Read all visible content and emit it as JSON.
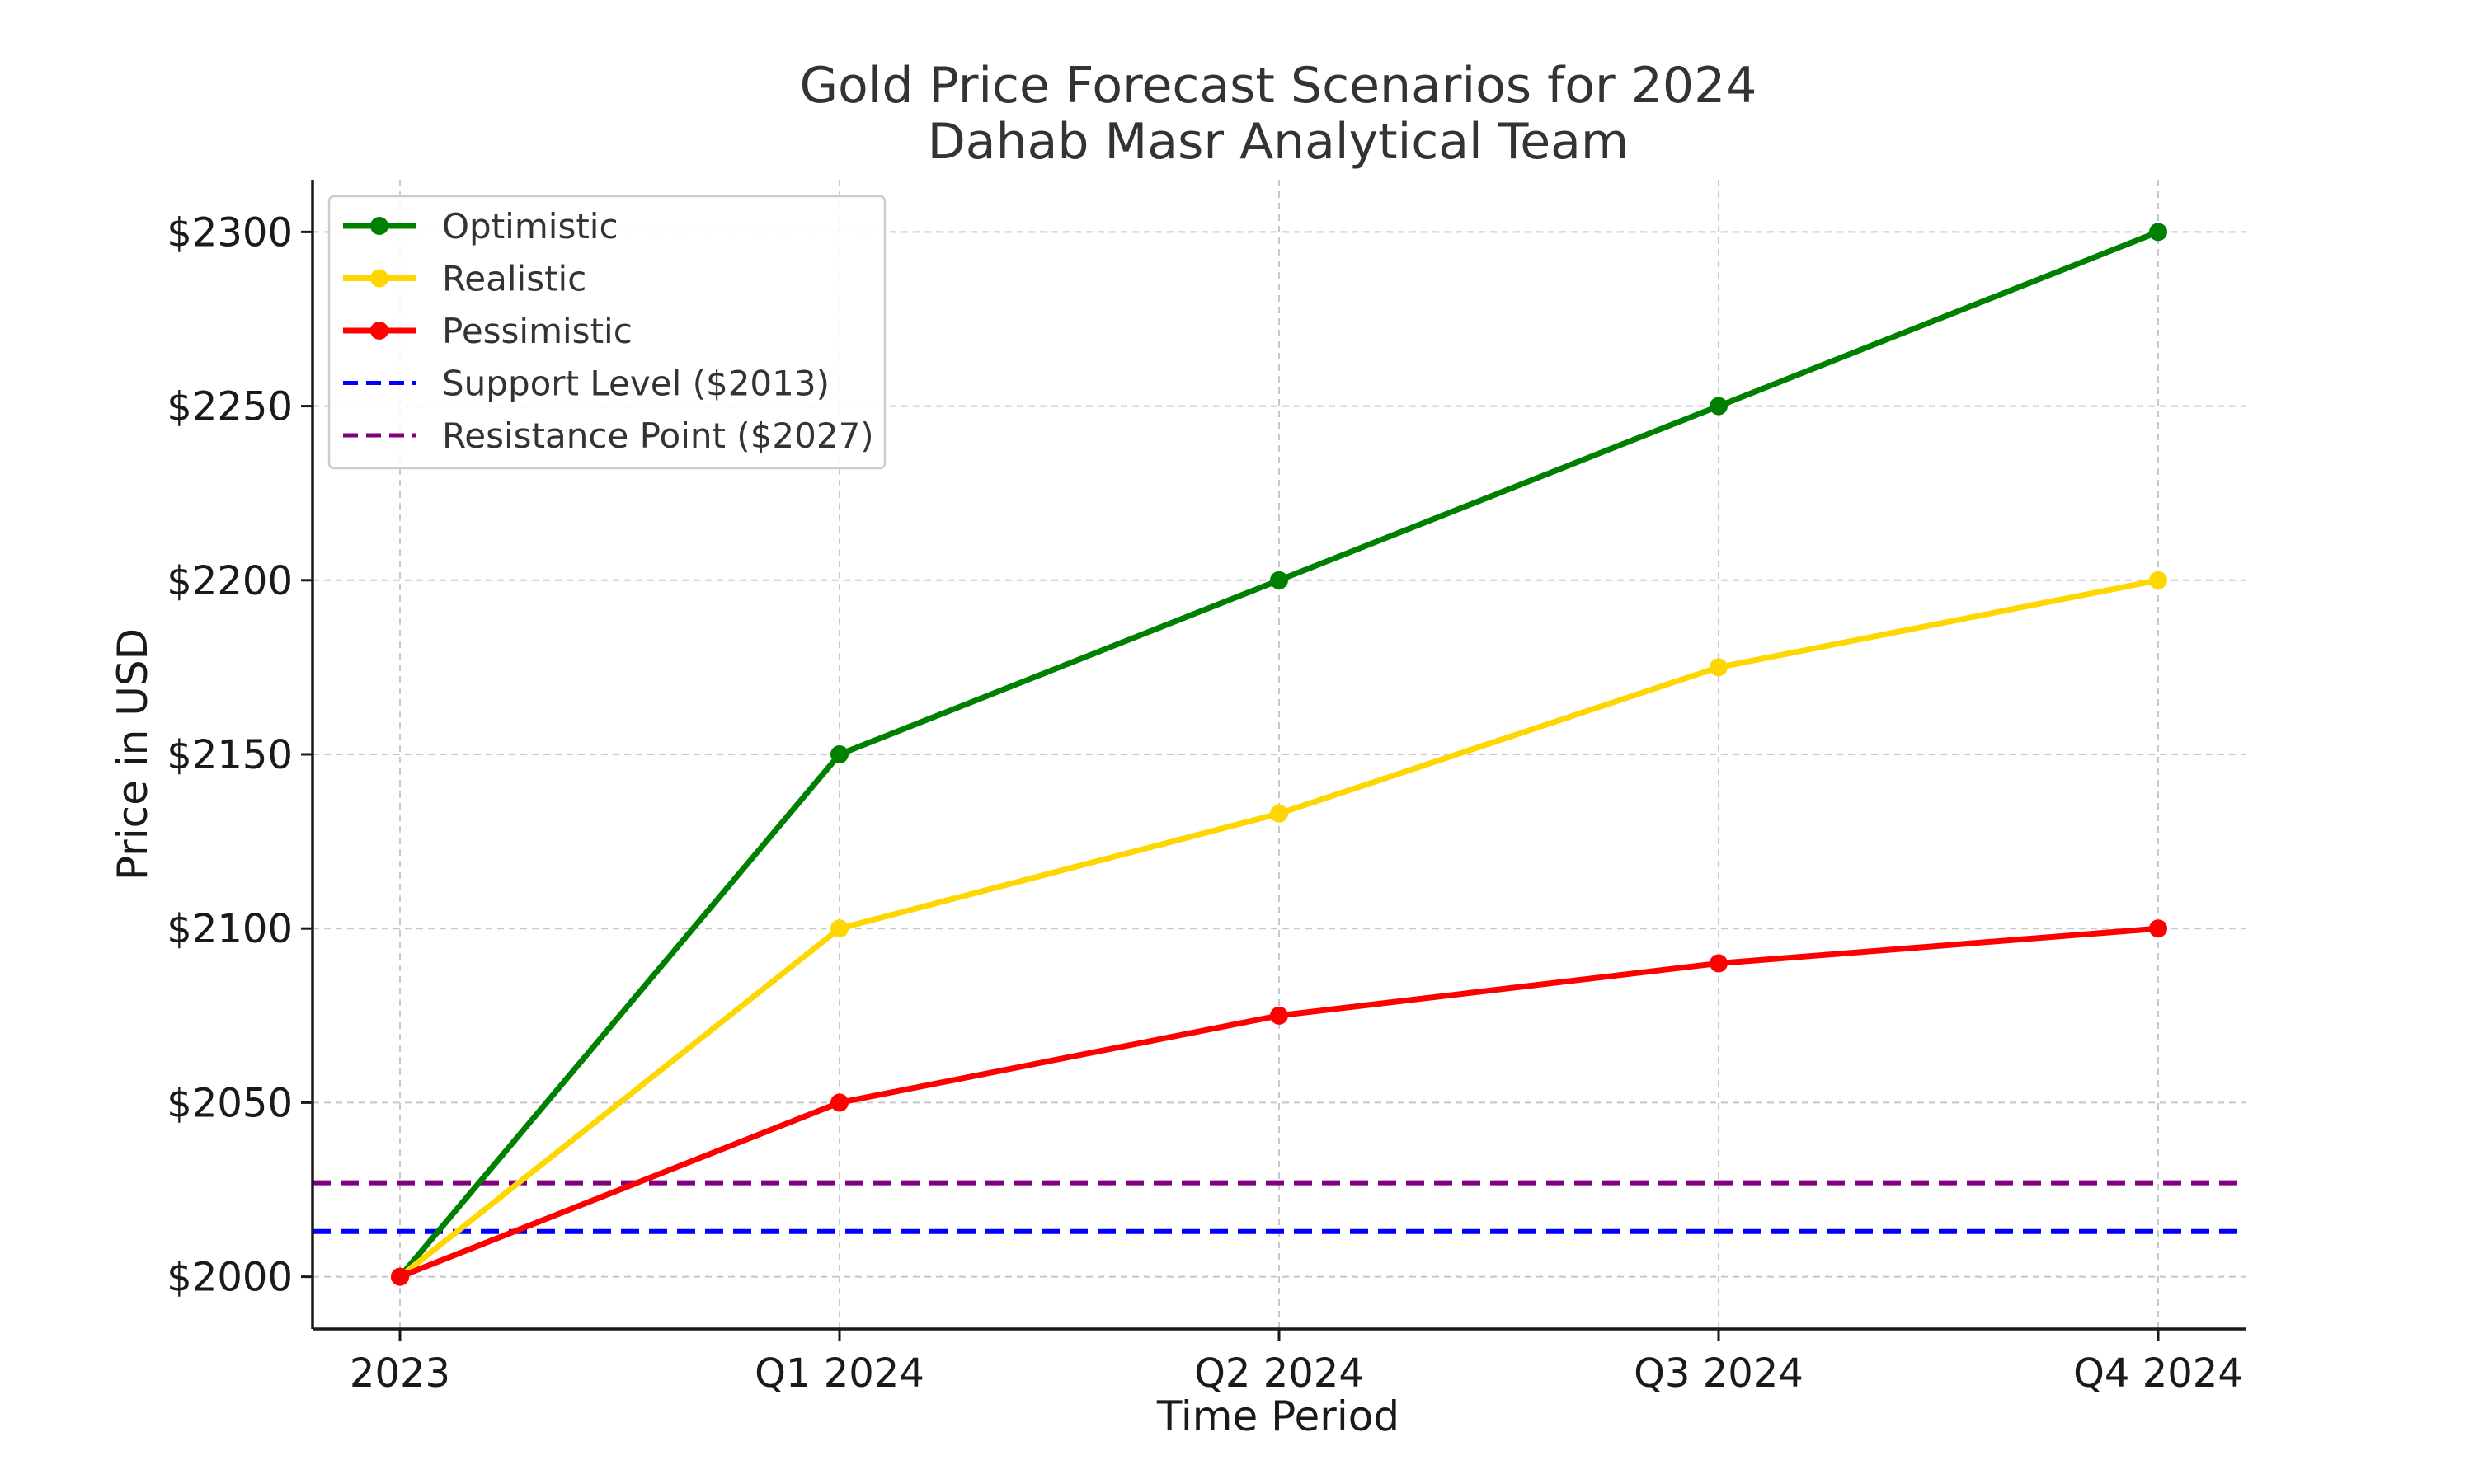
{
  "chart_data": {
    "type": "line",
    "title_line1": "Gold Price Forecast Scenarios for 2024",
    "title_line2": "Dahab Masr Analytical Team",
    "xlabel": "Time Period",
    "ylabel": "Price in USD",
    "categories": [
      "2023",
      "Q1 2024",
      "Q2 2024",
      "Q3 2024",
      "Q4 2024"
    ],
    "y_ticks": [
      2000,
      2050,
      2100,
      2150,
      2200,
      2250,
      2300
    ],
    "y_tick_labels": [
      "$2000",
      "$2050",
      "$2100",
      "$2150",
      "$2200",
      "$2250",
      "$2300"
    ],
    "ylim": [
      1985,
      2315
    ],
    "grid": true,
    "legend_position": "top-left",
    "series": [
      {
        "name": "Optimistic",
        "color": "#008000",
        "values": [
          2000,
          2150,
          2200,
          2250,
          2300
        ]
      },
      {
        "name": "Realistic",
        "color": "#FFD700",
        "values": [
          2000,
          2100,
          2133,
          2175,
          2200
        ]
      },
      {
        "name": "Pessimistic",
        "color": "#FF0000",
        "values": [
          2000,
          2050,
          2075,
          2090,
          2100
        ]
      }
    ],
    "reference_lines": [
      {
        "name": "Support Level ($2013)",
        "value": 2013,
        "color": "#0000FF",
        "style": "dashed"
      },
      {
        "name": "Resistance Point ($2027)",
        "value": 2027,
        "color": "#800080",
        "style": "dashed"
      }
    ]
  }
}
